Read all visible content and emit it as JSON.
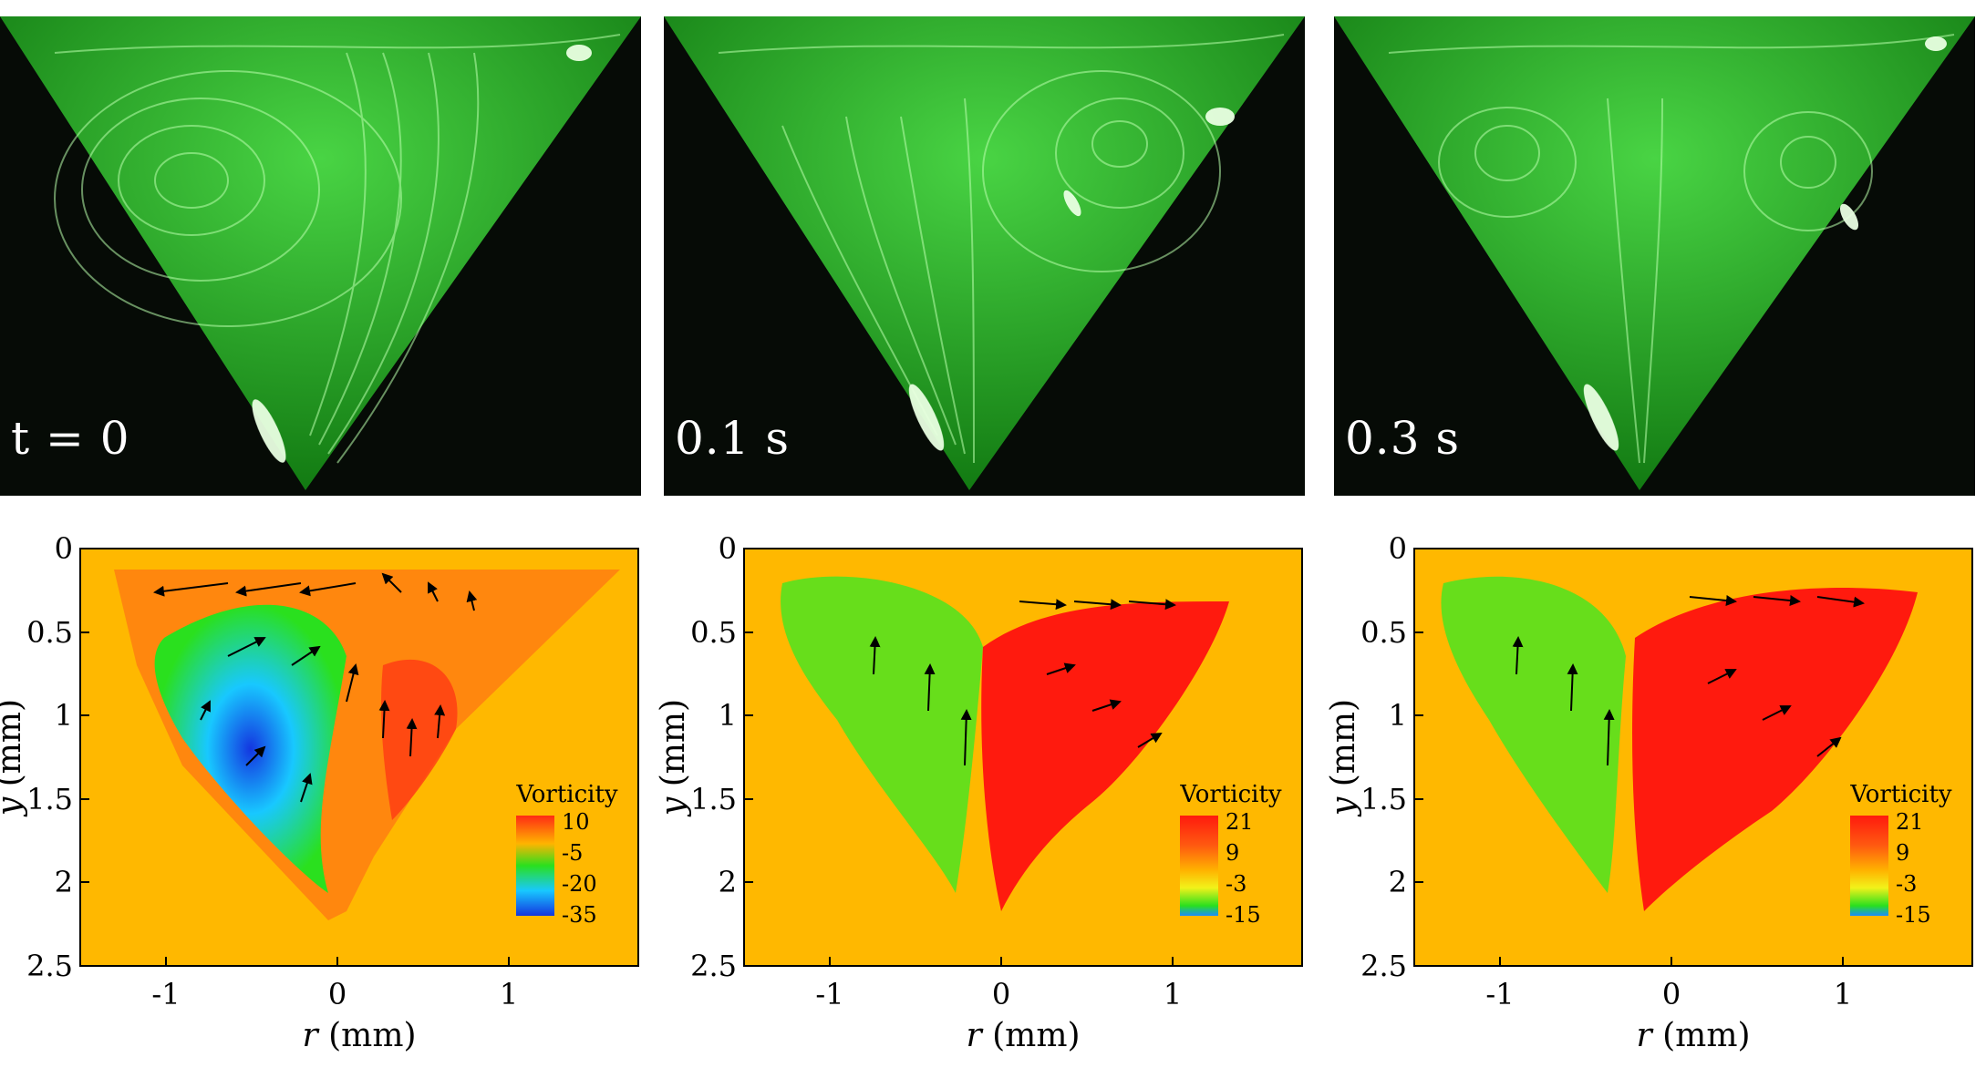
{
  "photos": [
    {
      "label": "t = 0"
    },
    {
      "label": "0.1 s"
    },
    {
      "label": "0.3 s"
    }
  ],
  "chart_data": [
    {
      "type": "heatmap",
      "xlabel_var": "r",
      "xlabel_unit": "(mm)",
      "ylabel_var": "y",
      "ylabel_unit": "(mm)",
      "xlim": [
        -1.5,
        1.75
      ],
      "ylim": [
        0,
        2.5
      ],
      "xticks": [
        -1,
        0,
        1
      ],
      "yticks": [
        0,
        0.5,
        1,
        1.5,
        2,
        2.5
      ],
      "legend_title": "Vorticity",
      "legend_ticks": [
        "10",
        "-5",
        "-20",
        "-35"
      ],
      "legend_placement": "lower-right",
      "colors": [
        "#ff2a14",
        "#ffb400",
        "#2ae01e",
        "#18c8ff",
        "#1436e0"
      ]
    },
    {
      "type": "heatmap",
      "xlabel_var": "r",
      "xlabel_unit": "(mm)",
      "ylabel_var": "y",
      "ylabel_unit": "(mm)",
      "xlim": [
        -1.5,
        1.75
      ],
      "ylim": [
        0,
        2.5
      ],
      "xticks": [
        -1,
        0,
        1
      ],
      "yticks": [
        0,
        0.5,
        1,
        1.5,
        2,
        2.5
      ],
      "legend_title": "Vorticity",
      "legend_ticks": [
        "21",
        "9",
        "-3",
        "-15"
      ],
      "legend_placement": "lower-right",
      "colors": [
        "#ff1a0e",
        "#ff5a10",
        "#ffb400",
        "#f2f21a",
        "#2ae01e",
        "#1a8cff"
      ]
    },
    {
      "type": "heatmap",
      "xlabel_var": "r",
      "xlabel_unit": "(mm)",
      "ylabel_var": "y",
      "ylabel_unit": "(mm)",
      "xlim": [
        -1.5,
        1.75
      ],
      "ylim": [
        0,
        2.5
      ],
      "xticks": [
        -1,
        0,
        1
      ],
      "yticks": [
        0,
        0.5,
        1,
        1.5,
        2,
        2.5
      ],
      "legend_title": "Vorticity",
      "legend_ticks": [
        "21",
        "9",
        "-3",
        "-15"
      ],
      "legend_placement": "lower-right",
      "colors": [
        "#ff1a0e",
        "#ff5a10",
        "#ffb400",
        "#f2f21a",
        "#2ae01e",
        "#1a8cff"
      ]
    }
  ]
}
